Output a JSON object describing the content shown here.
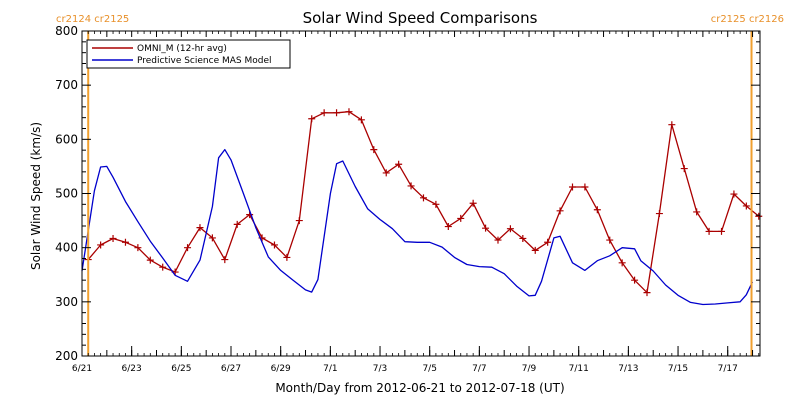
{
  "chart_data": {
    "type": "line",
    "title": "Solar Wind Speed Comparisons",
    "xlabel": "Month/Day from 2012-06-21 to 2012-07-18 (UT)",
    "ylabel": "Solar Wind Speed (km/s)",
    "ylim": [
      200,
      800
    ],
    "xlim": [
      "2012-06-21",
      "2012-07-18"
    ],
    "y_ticks": [
      "200",
      "300",
      "400",
      "500",
      "600",
      "700",
      "800"
    ],
    "x_ticks": [
      {
        "label": "6/21",
        "date": "2012-06-21"
      },
      {
        "label": "6/23",
        "date": "2012-06-23"
      },
      {
        "label": "6/25",
        "date": "2012-06-25"
      },
      {
        "label": "6/27",
        "date": "2012-06-27"
      },
      {
        "label": "6/29",
        "date": "2012-06-29"
      },
      {
        "label": "7/1",
        "date": "2012-07-01"
      },
      {
        "label": "7/3",
        "date": "2012-07-03"
      },
      {
        "label": "7/5",
        "date": "2012-07-05"
      },
      {
        "label": "7/7",
        "date": "2012-07-07"
      },
      {
        "label": "7/9",
        "date": "2012-07-09"
      },
      {
        "label": "7/11",
        "date": "2012-07-11"
      },
      {
        "label": "7/13",
        "date": "2012-07-13"
      },
      {
        "label": "7/15",
        "date": "2012-07-15"
      },
      {
        "label": "7/17",
        "date": "2012-07-17"
      }
    ],
    "rotation_markers": [
      {
        "date": "2012-06-21 06:00",
        "label": "cr2124 cr2125",
        "side": "left"
      },
      {
        "date": "2012-07-17 23:00",
        "label": "cr2125 cr2126",
        "side": "right"
      }
    ],
    "legend_position": "top-left",
    "series": [
      {
        "name": "OMNI_M (12-hr avg)",
        "color": "#aa0000",
        "markers": true,
        "points": [
          [
            "2012-06-21 06:00",
            378
          ],
          [
            "2012-06-21 18:00",
            405
          ],
          [
            "2012-06-22 06:00",
            417
          ],
          [
            "2012-06-22 18:00",
            410
          ],
          [
            "2012-06-23 06:00",
            400
          ],
          [
            "2012-06-23 18:00",
            377
          ],
          [
            "2012-06-24 06:00",
            364
          ],
          [
            "2012-06-24 18:00",
            355
          ],
          [
            "2012-06-25 06:00",
            400
          ],
          [
            "2012-06-25 18:00",
            437
          ],
          [
            "2012-06-26 06:00",
            418
          ],
          [
            "2012-06-26 18:00",
            378
          ],
          [
            "2012-06-27 06:00",
            443
          ],
          [
            "2012-06-27 18:00",
            461
          ],
          [
            "2012-06-28 06:00",
            418
          ],
          [
            "2012-06-28 18:00",
            405
          ],
          [
            "2012-06-29 06:00",
            382
          ],
          [
            "2012-06-29 18:00",
            450
          ],
          [
            "2012-06-30 06:00",
            638
          ],
          [
            "2012-06-30 18:00",
            649
          ],
          [
            "2012-07-01 06:00",
            649
          ],
          [
            "2012-07-01 18:00",
            651
          ],
          [
            "2012-07-02 06:00",
            636
          ],
          [
            "2012-07-02 18:00",
            581
          ],
          [
            "2012-07-03 06:00",
            538
          ],
          [
            "2012-07-03 18:00",
            554
          ],
          [
            "2012-07-04 06:00",
            514
          ],
          [
            "2012-07-04 18:00",
            492
          ],
          [
            "2012-07-05 06:00",
            480
          ],
          [
            "2012-07-05 18:00",
            439
          ],
          [
            "2012-07-06 06:00",
            454
          ],
          [
            "2012-07-06 18:00",
            482
          ],
          [
            "2012-07-07 06:00",
            436
          ],
          [
            "2012-07-07 18:00",
            414
          ],
          [
            "2012-07-08 06:00",
            435
          ],
          [
            "2012-07-08 18:00",
            417
          ],
          [
            "2012-07-09 06:00",
            395
          ],
          [
            "2012-07-09 18:00",
            410
          ],
          [
            "2012-07-10 06:00",
            468
          ],
          [
            "2012-07-10 18:00",
            512
          ],
          [
            "2012-07-11 06:00",
            512
          ],
          [
            "2012-07-11 18:00",
            470
          ],
          [
            "2012-07-12 06:00",
            414
          ],
          [
            "2012-07-12 18:00",
            372
          ],
          [
            "2012-07-13 06:00",
            340
          ],
          [
            "2012-07-13 18:00",
            317
          ],
          [
            "2012-07-14 06:00",
            463
          ],
          [
            "2012-07-14 18:00",
            627
          ],
          [
            "2012-07-15 06:00",
            546
          ],
          [
            "2012-07-15 18:00",
            466
          ],
          [
            "2012-07-16 06:00",
            430
          ],
          [
            "2012-07-16 18:00",
            430
          ],
          [
            "2012-07-17 06:00",
            499
          ],
          [
            "2012-07-17 18:00",
            477
          ],
          [
            "2012-07-18 06:00",
            458
          ]
        ]
      },
      {
        "name": "Predictive Science MAS Model",
        "color": "#0000cc",
        "markers": false,
        "points": [
          [
            "2012-06-21 00:00",
            357
          ],
          [
            "2012-06-21 12:00",
            505
          ],
          [
            "2012-06-21 18:00",
            549
          ],
          [
            "2012-06-22 00:00",
            550
          ],
          [
            "2012-06-22 06:00",
            530
          ],
          [
            "2012-06-22 18:00",
            485
          ],
          [
            "2012-06-23 06:00",
            448
          ],
          [
            "2012-06-23 18:00",
            412
          ],
          [
            "2012-06-24 06:00",
            381
          ],
          [
            "2012-06-24 18:00",
            349
          ],
          [
            "2012-06-25 06:00",
            338
          ],
          [
            "2012-06-25 18:00",
            377
          ],
          [
            "2012-06-26 06:00",
            476
          ],
          [
            "2012-06-26 12:00",
            566
          ],
          [
            "2012-06-26 18:00",
            581
          ],
          [
            "2012-06-27 00:00",
            562
          ],
          [
            "2012-06-27 12:00",
            500
          ],
          [
            "2012-06-28 00:00",
            437
          ],
          [
            "2012-06-28 12:00",
            383
          ],
          [
            "2012-06-29 00:00",
            358
          ],
          [
            "2012-06-29 12:00",
            340
          ],
          [
            "2012-06-30 00:00",
            322
          ],
          [
            "2012-06-30 06:00",
            318
          ],
          [
            "2012-06-30 12:00",
            341
          ],
          [
            "2012-07-01 00:00",
            500
          ],
          [
            "2012-07-01 06:00",
            555
          ],
          [
            "2012-07-01 12:00",
            560
          ],
          [
            "2012-07-02 00:00",
            513
          ],
          [
            "2012-07-02 12:00",
            472
          ],
          [
            "2012-07-03 00:00",
            452
          ],
          [
            "2012-07-03 12:00",
            435
          ],
          [
            "2012-07-04 00:00",
            411
          ],
          [
            "2012-07-04 12:00",
            410
          ],
          [
            "2012-07-05 00:00",
            410
          ],
          [
            "2012-07-05 12:00",
            401
          ],
          [
            "2012-07-06 00:00",
            382
          ],
          [
            "2012-07-06 12:00",
            369
          ],
          [
            "2012-07-07 00:00",
            365
          ],
          [
            "2012-07-07 12:00",
            364
          ],
          [
            "2012-07-08 00:00",
            352
          ],
          [
            "2012-07-08 12:00",
            329
          ],
          [
            "2012-07-09 00:00",
            311
          ],
          [
            "2012-07-09 06:00",
            312
          ],
          [
            "2012-07-09 12:00",
            338
          ],
          [
            "2012-07-10 00:00",
            418
          ],
          [
            "2012-07-10 06:00",
            421
          ],
          [
            "2012-07-10 18:00",
            372
          ],
          [
            "2012-07-11 06:00",
            358
          ],
          [
            "2012-07-11 18:00",
            376
          ],
          [
            "2012-07-12 06:00",
            385
          ],
          [
            "2012-07-12 18:00",
            400
          ],
          [
            "2012-07-13 06:00",
            398
          ],
          [
            "2012-07-13 12:00",
            376
          ],
          [
            "2012-07-14 00:00",
            357
          ],
          [
            "2012-07-14 12:00",
            331
          ],
          [
            "2012-07-15 00:00",
            312
          ],
          [
            "2012-07-15 12:00",
            299
          ],
          [
            "2012-07-16 00:00",
            295
          ],
          [
            "2012-07-16 12:00",
            296
          ],
          [
            "2012-07-17 00:00",
            298
          ],
          [
            "2012-07-17 12:00",
            300
          ],
          [
            "2012-07-17 18:00",
            313
          ],
          [
            "2012-07-18 00:00",
            337
          ]
        ]
      }
    ]
  }
}
